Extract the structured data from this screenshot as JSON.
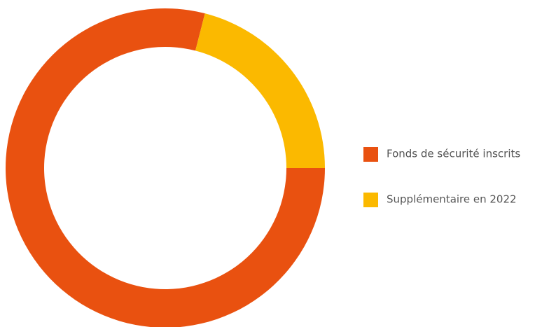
{
  "chart_data": {
    "type": "donut",
    "categories": [
      "Fonds de sécurité inscrits",
      "Supplémentaire en 2022"
    ],
    "values": [
      79,
      21
    ],
    "colors": [
      "#e95110",
      "#fbb900"
    ],
    "legend": "right"
  }
}
